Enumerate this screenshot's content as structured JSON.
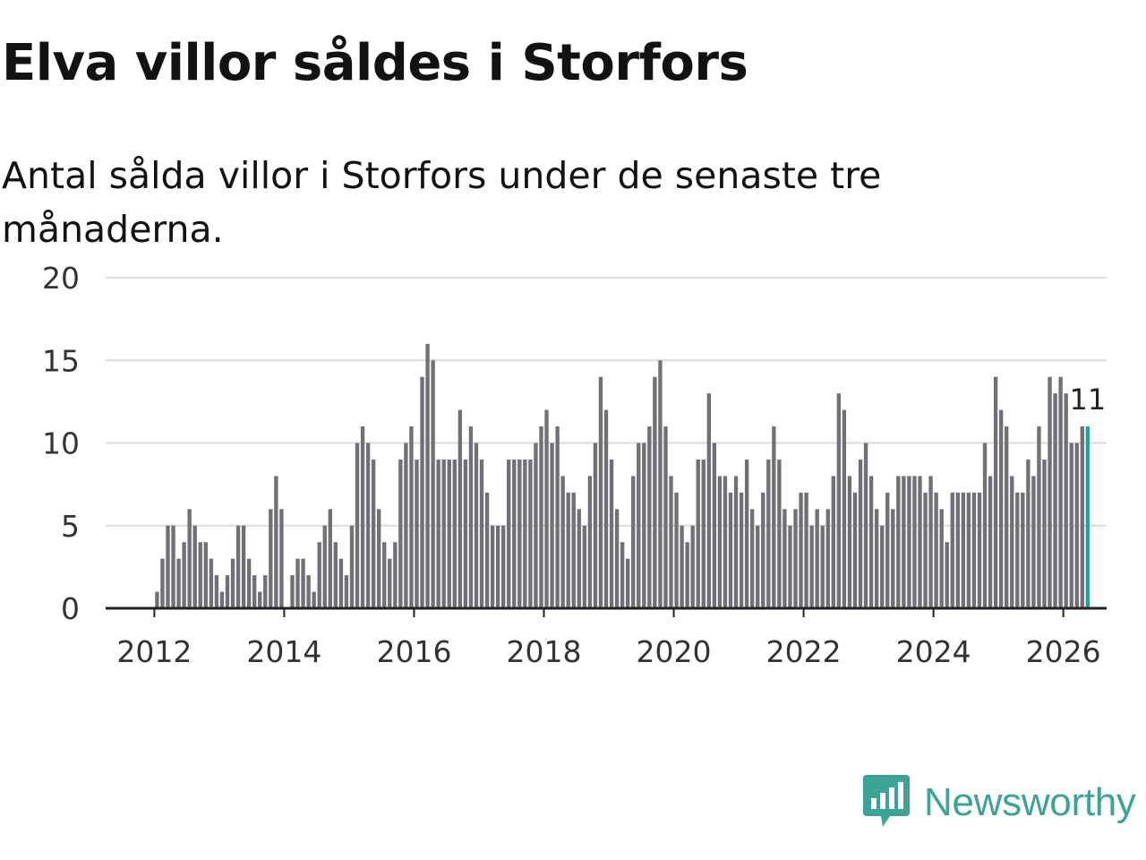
{
  "title": "Elva villor såldes i Storfors",
  "subtitle": "Antal sålda villor i Storfors under de senaste tre månaderna.",
  "colors": {
    "bar": "#717076",
    "highlight": "#17a89a",
    "brand": "#3aa596"
  },
  "brand": {
    "name": "Newsworthy",
    "icon": "bar-chart-speech-bubble-icon"
  },
  "chart_data": {
    "type": "bar",
    "title": "Elva villor såldes i Storfors",
    "subtitle": "Antal sålda villor i Storfors under de senaste tre månaderna.",
    "xlabel": "",
    "ylabel": "",
    "ylim": [
      0,
      20
    ],
    "yticks": [
      0,
      5,
      10,
      15,
      20
    ],
    "xticks": [
      "2012",
      "2014",
      "2016",
      "2018",
      "2020",
      "2022",
      "2024",
      "2026"
    ],
    "x_range": [
      "2011-04",
      "2026-09"
    ],
    "first_period": "2012-01",
    "period": "month",
    "highlight_last": true,
    "last_value_label": "11",
    "grid": true,
    "values": [
      1,
      3,
      5,
      5,
      3,
      4,
      6,
      5,
      4,
      4,
      3,
      2,
      1,
      2,
      3,
      5,
      5,
      3,
      2,
      1,
      2,
      6,
      8,
      6,
      0,
      2,
      3,
      3,
      2,
      1,
      4,
      5,
      6,
      4,
      3,
      2,
      5,
      10,
      11,
      10,
      9,
      6,
      4,
      3,
      4,
      9,
      10,
      11,
      9,
      14,
      16,
      15,
      9,
      9,
      9,
      9,
      12,
      9,
      11,
      10,
      9,
      7,
      5,
      5,
      5,
      9,
      9,
      9,
      9,
      9,
      10,
      11,
      12,
      10,
      11,
      8,
      7,
      7,
      6,
      5,
      8,
      10,
      14,
      12,
      9,
      6,
      4,
      3,
      8,
      10,
      10,
      11,
      14,
      15,
      11,
      8,
      7,
      5,
      4,
      5,
      9,
      9,
      13,
      10,
      8,
      8,
      7,
      8,
      7,
      9,
      6,
      5,
      7,
      9,
      11,
      9,
      6,
      5,
      6,
      7,
      7,
      5,
      6,
      5,
      6,
      8,
      13,
      12,
      8,
      7,
      9,
      10,
      8,
      6,
      5,
      7,
      6,
      8,
      8,
      8,
      8,
      8,
      7,
      8,
      7,
      6,
      4,
      7,
      7,
      7,
      7,
      7,
      7,
      10,
      8,
      14,
      12,
      11,
      8,
      7,
      7,
      9,
      8,
      11,
      9,
      14,
      13,
      14,
      13,
      10,
      10,
      11,
      11
    ]
  }
}
